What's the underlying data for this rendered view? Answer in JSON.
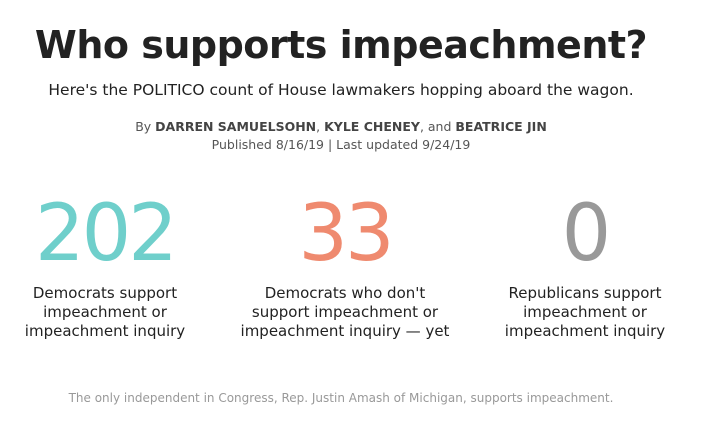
{
  "header": {
    "title": "Who supports impeachment?",
    "subtitle": "Here's the POLITICO count of House lawmakers hopping aboard the wagon."
  },
  "byline": {
    "prefix": "By",
    "author_1": "DARREN SAMUELSOHN",
    "sep_1": ",",
    "author_2": "KYLE CHENEY",
    "sep_2": ", and",
    "author_3": "BEATRICE JIN",
    "dates": "Published 8/16/19 | Last updated 9/24/19"
  },
  "stats": [
    {
      "value": "202",
      "label": "Democrats support impeachment or impeachment inquiry",
      "color": "#6fcfcb"
    },
    {
      "value": "33",
      "label": "Democrats who don't support impeachment or impeachment inquiry — yet",
      "color": "#ef8a6f"
    },
    {
      "value": "0",
      "label": "Republicans support impeachment or impeachment inquiry",
      "color": "#999999"
    }
  ],
  "footnote": "The only independent in Congress, Rep. Justin Amash of Michigan, supports impeachment."
}
